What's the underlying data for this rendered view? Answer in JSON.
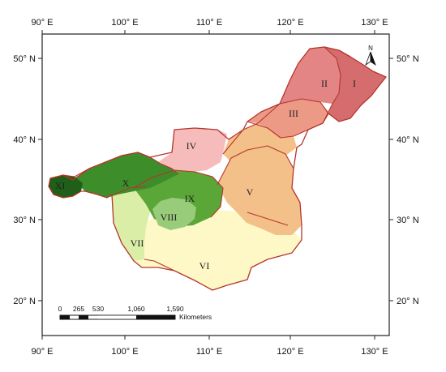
{
  "map": {
    "lon_ticks": [
      "90° E",
      "100° E",
      "110° E",
      "120° E",
      "130° E"
    ],
    "lat_ticks": [
      "50° N",
      "40° N",
      "30° N",
      "20° N"
    ],
    "north_label": "N",
    "scale": {
      "values": [
        "0",
        "265",
        "530",
        "1,060",
        "1,590"
      ],
      "unit": "Kilometers"
    },
    "zones": [
      {
        "id": "I",
        "color": "#d56c6e"
      },
      {
        "id": "II",
        "color": "#e38585"
      },
      {
        "id": "III",
        "color": "#ec9a86"
      },
      {
        "id": "IV",
        "color": "#f6bcbc"
      },
      {
        "id": "V",
        "color": "#f4c08a"
      },
      {
        "id": "VI",
        "color": "#fdf8c6"
      },
      {
        "id": "VII",
        "color": "#dbeea8"
      },
      {
        "id": "VIII",
        "color": "#99cc7a"
      },
      {
        "id": "IX",
        "color": "#5aa636"
      },
      {
        "id": "X",
        "color": "#3e8d2b"
      },
      {
        "id": "XI",
        "color": "#1f5f1a"
      }
    ],
    "colors": {
      "boundary": "#b5352b",
      "frame": "#222222"
    }
  }
}
